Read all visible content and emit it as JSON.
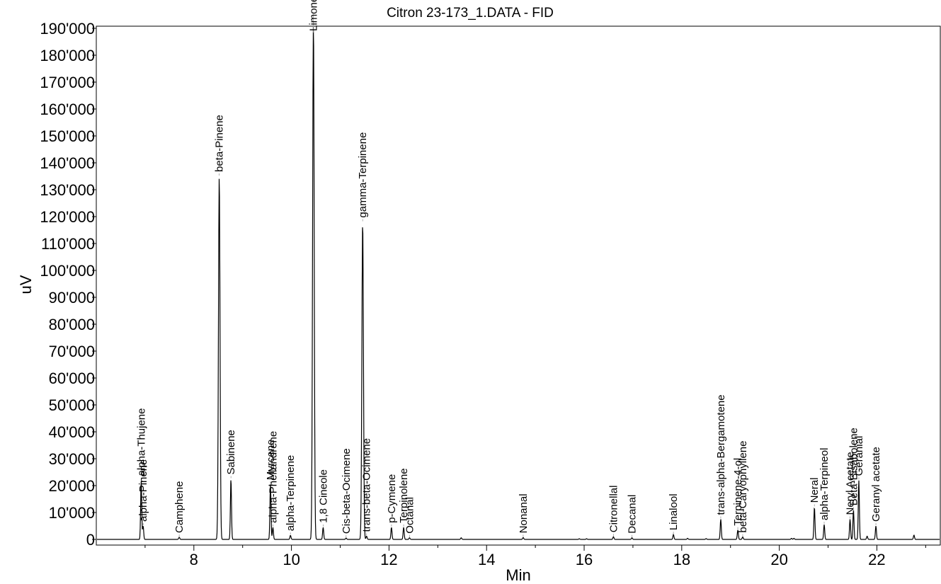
{
  "chart_data": {
    "type": "line",
    "title": "Citron 23-173_1.DATA - FID",
    "xlabel": "Min",
    "ylabel": "uV",
    "xlim": [
      6.0,
      23.3
    ],
    "ylim": [
      -2000,
      190000
    ],
    "x_ticks": [
      8,
      10,
      12,
      14,
      16,
      18,
      20,
      22
    ],
    "x_tick_labels": [
      "8",
      "10",
      "12",
      "14",
      "16",
      "18",
      "20",
      "22"
    ],
    "y_ticks": [
      0,
      10000,
      20000,
      30000,
      40000,
      50000,
      60000,
      70000,
      80000,
      90000,
      100000,
      110000,
      120000,
      130000,
      140000,
      150000,
      160000,
      170000,
      180000,
      190000
    ],
    "y_tick_labels": [
      "0",
      "10'000",
      "20'000",
      "30'000",
      "40'000",
      "50'000",
      "60'000",
      "70'000",
      "80'000",
      "90'000",
      "100'000",
      "110'000",
      "120'000",
      "130'000",
      "140'000",
      "150'000",
      "160'000",
      "170'000",
      "180'000",
      "190'000"
    ],
    "grid": false,
    "series": [
      {
        "peaks": [
          {
            "x": 6.92,
            "y": 22000,
            "label": "alpha-Thujene"
          },
          {
            "x": 6.96,
            "y": 5000,
            "label": "alpha-Pinene"
          },
          {
            "x": 7.7,
            "y": 800,
            "label": "Camphene"
          },
          {
            "x": 8.52,
            "y": 135000,
            "label": "beta-Pinene"
          },
          {
            "x": 8.76,
            "y": 22500,
            "label": "Sabinene"
          },
          {
            "x": 9.57,
            "y": 20500,
            "label": "Myrcene"
          },
          {
            "x": 9.62,
            "y": 4500,
            "label": "alpha-Phellandrene"
          },
          {
            "x": 9.98,
            "y": 1500,
            "label": "alpha-Terpinene"
          },
          {
            "x": 10.45,
            "y": 195000,
            "label": "Limonene"
          },
          {
            "x": 10.65,
            "y": 4500,
            "label": "1,8 Cineole"
          },
          {
            "x": 11.12,
            "y": 500,
            "label": "Cis-beta-Ocimene"
          },
          {
            "x": 11.46,
            "y": 118000,
            "label": "gamma-Terpinene"
          },
          {
            "x": 11.54,
            "y": 1200,
            "label": "trans-beta-Ocimene"
          },
          {
            "x": 12.05,
            "y": 4500,
            "label": "p-Cymene"
          },
          {
            "x": 12.3,
            "y": 4500,
            "label": "Terpinolene"
          },
          {
            "x": 12.42,
            "y": 600,
            "label": "Octanal"
          },
          {
            "x": 14.75,
            "y": 700,
            "label": "Nonanal"
          },
          {
            "x": 16.6,
            "y": 1000,
            "label": "Citronellal"
          },
          {
            "x": 16.98,
            "y": 600,
            "label": "Decanal"
          },
          {
            "x": 17.83,
            "y": 1800,
            "label": "Linalool"
          },
          {
            "x": 18.8,
            "y": 7500,
            "label": "trans-alpha-Bergamotene"
          },
          {
            "x": 19.15,
            "y": 3500,
            "label": "Terpinene-4-ol"
          },
          {
            "x": 19.25,
            "y": 900,
            "label": "beta-Caryophyllene"
          },
          {
            "x": 20.72,
            "y": 12000,
            "label": "Neral"
          },
          {
            "x": 20.92,
            "y": 5500,
            "label": "alpha-Terpineol"
          },
          {
            "x": 21.45,
            "y": 7500,
            "label": "Neryl Acetate"
          },
          {
            "x": 21.52,
            "y": 11000,
            "label": "Beta-Bisabolene"
          },
          {
            "x": 21.63,
            "y": 22000,
            "label": "Geranial"
          },
          {
            "x": 21.98,
            "y": 5000,
            "label": "Geranyl acetate"
          }
        ],
        "minor_peaks": [
          {
            "x": 13.48,
            "y": 600
          },
          {
            "x": 15.9,
            "y": 250
          },
          {
            "x": 16.05,
            "y": 250
          },
          {
            "x": 18.12,
            "y": 400
          },
          {
            "x": 18.5,
            "y": 300
          },
          {
            "x": 20.25,
            "y": 400
          },
          {
            "x": 20.3,
            "y": 400
          },
          {
            "x": 21.8,
            "y": 1200
          },
          {
            "x": 22.76,
            "y": 1600
          }
        ]
      }
    ]
  }
}
